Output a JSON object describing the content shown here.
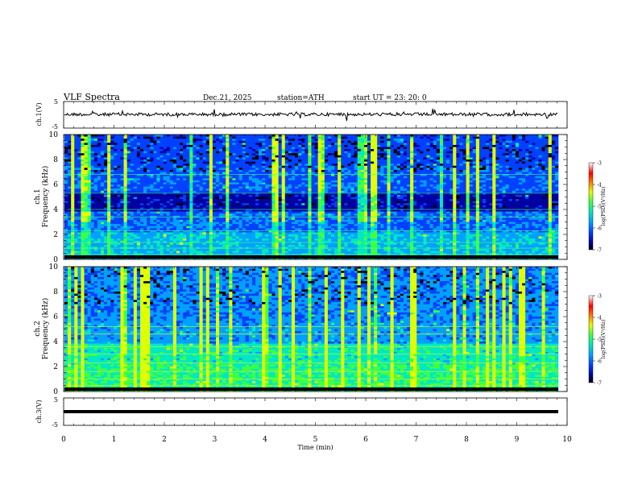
{
  "header": {
    "title": "VLF  Spectra",
    "date": "Dec.21, 2025",
    "station": "station=ATH",
    "start": "start  UT  =    23: 20: 0"
  },
  "chart_data": [
    {
      "type": "line",
      "name": "ch1-voltage",
      "ylabel": "ch.1(V)",
      "ylim": [
        -5,
        5
      ],
      "ytick_labels": [
        "5",
        "-5"
      ],
      "xlim": [
        0,
        10
      ]
    },
    {
      "type": "heatmap",
      "name": "ch1-spectrogram",
      "ylabel_lines": [
        "ch.1",
        "Frequency (kHz)"
      ],
      "ylim": [
        0,
        10
      ],
      "ytick_labels": [
        "0",
        "2",
        "4",
        "6",
        "8",
        "10"
      ],
      "xlim": [
        0,
        9.8
      ],
      "colorbar": {
        "label": "log(PSD)(V²/Hz)",
        "range": [
          -7,
          -3
        ],
        "tick_labels": [
          "-3",
          "-4",
          "-5",
          "-6",
          "-7"
        ]
      }
    },
    {
      "type": "heatmap",
      "name": "ch2-spectrogram",
      "ylabel_lines": [
        "ch.2",
        "Frequency (kHz)"
      ],
      "ylim": [
        0,
        10
      ],
      "ytick_labels": [
        "0",
        "2",
        "4",
        "6",
        "8",
        "10"
      ],
      "xlim": [
        0,
        9.8
      ],
      "colorbar": {
        "label": "log(PSD)(V²/Hz)",
        "range": [
          -7,
          -3
        ],
        "tick_labels": [
          "-3",
          "-4",
          "-5",
          "-6",
          "-7"
        ]
      }
    },
    {
      "type": "line",
      "name": "ch3-voltage",
      "ylabel": "ch.3(V)",
      "ylim": [
        -5,
        5
      ],
      "ytick_labels": [
        "5",
        "-5"
      ],
      "xlim": [
        0,
        10
      ]
    }
  ],
  "x_axis": {
    "label": "Time  (min)",
    "tick_labels": [
      "0",
      "1",
      "2",
      "3",
      "4",
      "5",
      "6",
      "7",
      "8",
      "9",
      "10"
    ]
  },
  "colors": {
    "colormap": [
      "#000000",
      "#0000a0",
      "#0040ff",
      "#00a0ff",
      "#00e8c0",
      "#40ff40",
      "#e0ff00",
      "#ff8000",
      "#ff0000",
      "#ffffff"
    ]
  }
}
